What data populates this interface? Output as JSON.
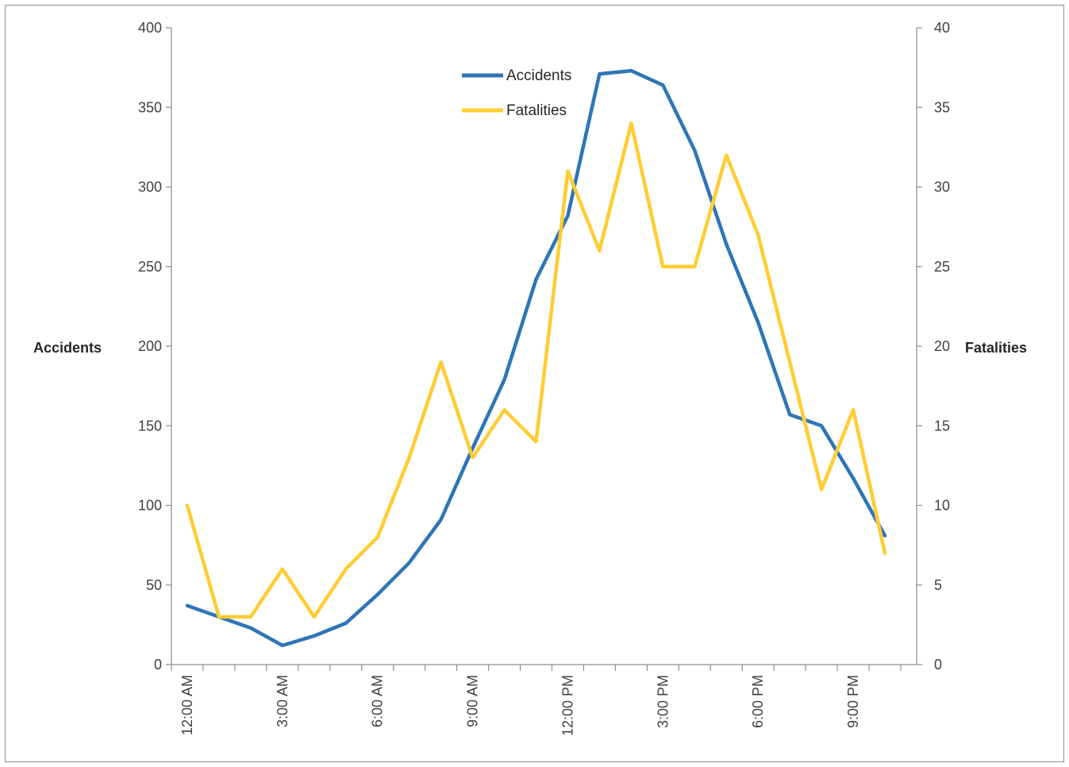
{
  "chart_data": {
    "type": "line",
    "x": [
      "12:00 AM",
      "1:00 AM",
      "2:00 AM",
      "3:00 AM",
      "4:00 AM",
      "5:00 AM",
      "6:00 AM",
      "7:00 AM",
      "8:00 AM",
      "9:00 AM",
      "10:00 AM",
      "11:00 AM",
      "12:00 PM",
      "1:00 PM",
      "2:00 PM",
      "3:00 PM",
      "4:00 PM",
      "5:00 PM",
      "6:00 PM",
      "7:00 PM",
      "8:00 PM",
      "9:00 PM",
      "10:00 PM"
    ],
    "x_tick_labels": [
      "12:00 AM",
      "3:00 AM",
      "6:00 AM",
      "9:00 AM",
      "12:00 PM",
      "3:00 PM",
      "6:00 PM",
      "9:00 PM"
    ],
    "series": [
      {
        "name": "Accidents",
        "axis": "left",
        "color": "#2e75b6",
        "values": [
          37,
          30,
          23,
          12,
          18,
          26,
          44,
          64,
          91,
          136,
          179,
          242,
          282,
          371,
          373,
          364,
          323,
          264,
          215,
          157,
          150,
          117,
          81
        ]
      },
      {
        "name": "Fatalities",
        "axis": "right",
        "color": "#ffcc33",
        "values": [
          10,
          3,
          3,
          6,
          3,
          6,
          8,
          13,
          19,
          13,
          16,
          14,
          31,
          26,
          34,
          25,
          25,
          32,
          27,
          19,
          11,
          16,
          7
        ]
      }
    ],
    "ylabel": "Accidents",
    "ylim": [
      0,
      400
    ],
    "y_ticks": [
      0,
      50,
      100,
      150,
      200,
      250,
      300,
      350,
      400
    ],
    "y2label": "Fatalities",
    "y2lim": [
      0,
      40
    ],
    "y2_ticks": [
      0,
      5,
      10,
      15,
      20,
      25,
      30,
      35,
      40
    ],
    "legend_position": "top-center",
    "grid": false
  }
}
